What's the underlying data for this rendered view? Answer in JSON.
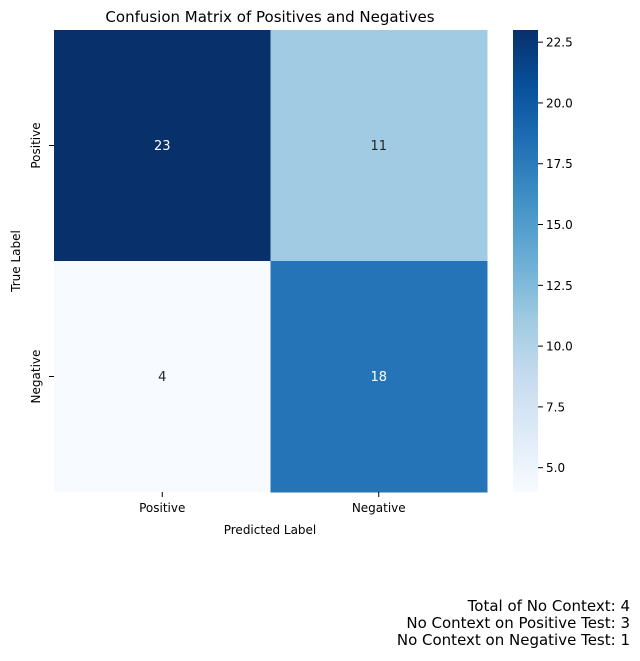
{
  "chart_data": {
    "type": "heatmap",
    "title": "Confusion Matrix of Positives and Negatives",
    "xlabel": "Predicted Label",
    "ylabel": "True Label",
    "x_categories": [
      "Positive",
      "Negative"
    ],
    "y_categories": [
      "Positive",
      "Negative"
    ],
    "values": [
      [
        23,
        11
      ],
      [
        4,
        18
      ]
    ],
    "colormap": "Blues",
    "color_range": [
      4,
      23
    ],
    "colorbar_ticks": [
      "5.0",
      "7.5",
      "10.0",
      "12.5",
      "15.0",
      "17.5",
      "20.0",
      "22.5"
    ],
    "annotation_colors": {
      "light_text": "#ffffff",
      "dark_text": "#262626"
    }
  },
  "notes": [
    "Total of No Context: 4",
    "No Context on Positive Test: 3",
    "No Context on Negative Test: 1"
  ]
}
